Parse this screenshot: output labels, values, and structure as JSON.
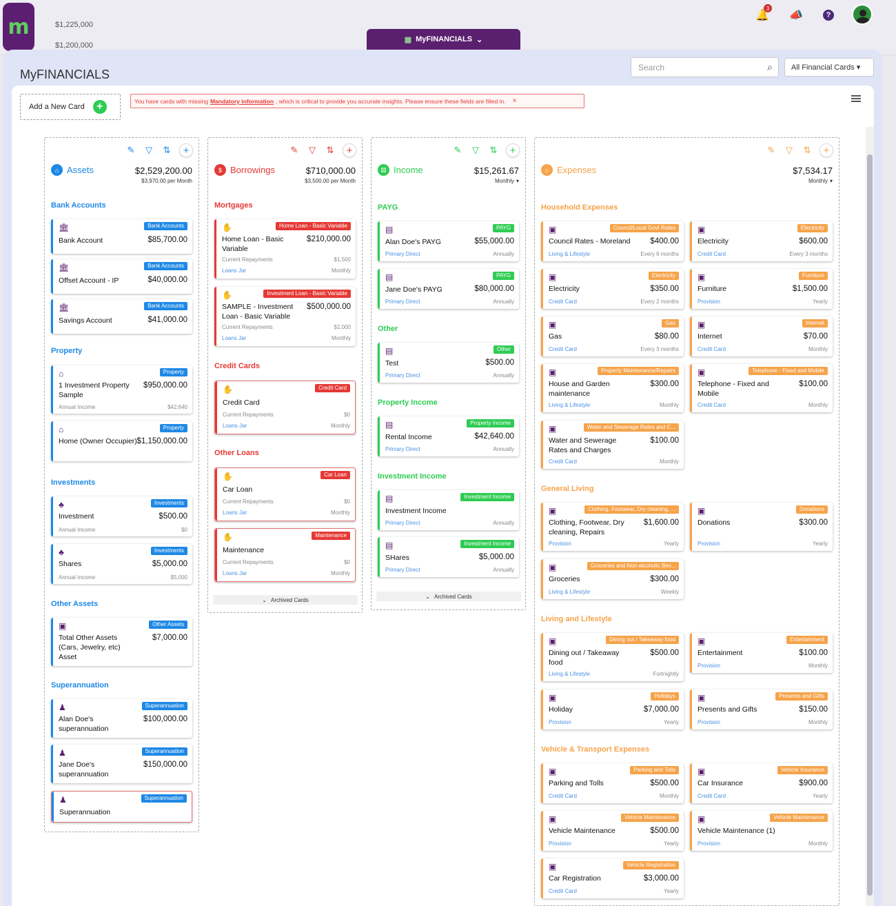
{
  "topbar": {
    "bg_ticks": [
      "$1,225,000",
      "$1,200,000"
    ],
    "nav_tab": "MyFINANCIALS",
    "notif_count": "3",
    "help": "?"
  },
  "header": {
    "title": "MyFINANCIALS",
    "search_placeholder": "Search",
    "filter": "All Financial Cards"
  },
  "toolbar": {
    "add_card": "Add a New Card",
    "alert_pre": "You have cards with missing",
    "alert_link": "Mandatory information",
    "alert_post": ", which is critical to provide you accurate insights. Please ensure these fields are filled in.",
    "alert_close": "×"
  },
  "colors": {
    "assets": "#1e88e5",
    "borrowings": "#e53935",
    "income": "#2ecc52",
    "expenses": "#f6a34a",
    "brand": "#5a1f6e"
  },
  "assets": {
    "title": "Assets",
    "total": "$2,529,200.00",
    "per_month": "$3,970.00",
    "per_label": "per Month",
    "s1": "Bank Accounts",
    "s2": "Property",
    "s3": "Investments",
    "s4": "Other Assets",
    "s5": "Superannuation",
    "cards": [
      {
        "tag": "Bank Accounts",
        "name": "Bank Account",
        "amount": "$85,700.00"
      },
      {
        "tag": "Bank Accounts",
        "name": "Offset Account - IP",
        "amount": "$40,000.00"
      },
      {
        "tag": "Bank Accounts",
        "name": "Savings Account",
        "amount": "$41,000.00"
      },
      {
        "tag": "Property",
        "name": "1 Investment Property Sample",
        "amount": "$950,000.00",
        "l1": "Annual Income",
        "r1": "$42,640"
      },
      {
        "tag": "Property",
        "name": "Home (Owner Occupier)",
        "amount": "$1,150,000.00"
      },
      {
        "tag": "Investments",
        "name": "Investment",
        "amount": "$500.00",
        "l1": "Annual Income",
        "r1": "$0"
      },
      {
        "tag": "Investments",
        "name": "Shares",
        "amount": "$5,000.00",
        "l1": "Annual Income",
        "r1": "$5,000"
      },
      {
        "tag": "Other Assets",
        "name": "Total Other Assets (Cars, Jewelry, etc) Asset",
        "amount": "$7,000.00"
      },
      {
        "tag": "Superannuation",
        "name": "Alan Doe's superannuation",
        "amount": "$100,000.00"
      },
      {
        "tag": "Superannuation",
        "name": "Jane Doe's superannuation",
        "amount": "$150,000.00"
      },
      {
        "tag": "Superannuation",
        "name": "Superannuation",
        "amount": ""
      }
    ]
  },
  "borrowings": {
    "title": "Borrowings",
    "total": "$710,000.00",
    "per_month": "$3,500.00",
    "per_label": "per Month",
    "s1": "Mortgages",
    "s2": "Credit Cards",
    "s3": "Other Loans",
    "archived": "Archived Cards",
    "cards": [
      {
        "tag": "Home Loan - Basic Variable",
        "name": "Home Loan - Basic Variable",
        "amount": "$210,000.00",
        "l1": "Current Repayments",
        "r1": "$1,500",
        "l2": "Loans Jar",
        "r2": "Monthly"
      },
      {
        "tag": "Investment Loan - Basic Variable",
        "name": "SAMPLE - Investment Loan - Basic Variable",
        "amount": "$500,000.00",
        "l1": "Current Repayments",
        "r1": "$2,000",
        "l2": "Loans Jar",
        "r2": "Monthly"
      },
      {
        "tag": "Credit Card",
        "name": "Credit Card",
        "amount": "",
        "l1": "Current Repayments",
        "r1": "$0",
        "l2": "Loans Jar",
        "r2": "Monthly"
      },
      {
        "tag": "Car Loan",
        "name": "Car Loan",
        "amount": "",
        "l1": "Current Repayments",
        "r1": "$0",
        "l2": "Loans Jar",
        "r2": "Monthly"
      },
      {
        "tag": "Maintenance",
        "name": "Maintenance",
        "amount": "",
        "l1": "Current Repayments",
        "r1": "$0",
        "l2": "Loans Jar",
        "r2": "Monthly"
      }
    ]
  },
  "income": {
    "title": "Income",
    "total": "$15,261.67",
    "freq": "Monthly",
    "s1": "PAYG",
    "s2": "Other",
    "s3": "Property Income",
    "s4": "Investment Income",
    "archived": "Archived Cards",
    "cards": [
      {
        "tag": "PAYG",
        "name": "Alan Doe's PAYG",
        "amount": "$55,000.00",
        "l2": "Primary Direct",
        "r2": "Annually"
      },
      {
        "tag": "PAYG",
        "name": "Jane Doe's PAYG",
        "amount": "$80,000.00",
        "l2": "Primary Direct",
        "r2": "Annually"
      },
      {
        "tag": "Other",
        "name": "Test",
        "amount": "$500.00",
        "l2": "Primary Direct",
        "r2": "Annually"
      },
      {
        "tag": "Property Income",
        "name": "Rental Income",
        "amount": "$42,640.00",
        "l2": "Primary Direct",
        "r2": "Annually"
      },
      {
        "tag": "Investment Income",
        "name": "Investment Income",
        "amount": "",
        "l2": "Primary Direct",
        "r2": "Annually"
      },
      {
        "tag": "Investment Income",
        "name": "SHares",
        "amount": "$5,000.00",
        "l2": "Primary Direct",
        "r2": "Annually"
      }
    ]
  },
  "expenses": {
    "title": "Expenses",
    "total": "$7,534.17",
    "freq": "Monthly",
    "s1": "Household Expenses",
    "s2": "General Living",
    "s3": "Living and Lifestyle",
    "s4": "Vehicle & Transport Expenses",
    "cards": [
      {
        "tag": "Council/Local Govt Rates",
        "name": "Council Rates - Moreland",
        "amount": "$400.00",
        "l2": "Living & Lifestyle",
        "r2": "Every 6 months"
      },
      {
        "tag": "Electricity",
        "name": "Electricity",
        "amount": "$600.00",
        "l2": "Credit Card",
        "r2": "Every 3 months"
      },
      {
        "tag": "Electricity",
        "name": "Electricity",
        "amount": "$350.00",
        "l2": "Credit Card",
        "r2": "Every 2 months"
      },
      {
        "tag": "Furniture",
        "name": "Furniture",
        "amount": "$1,500.00",
        "l2": "Provision",
        "r2": "Yearly"
      },
      {
        "tag": "Gas",
        "name": "Gas",
        "amount": "$80.00",
        "l2": "Credit Card",
        "r2": "Every 3 months"
      },
      {
        "tag": "Internet",
        "name": "Internet",
        "amount": "$70.00",
        "l2": "Credit Card",
        "r2": "Monthly"
      },
      {
        "tag": "Property Maintenance/Repairs",
        "name": "House and Garden maintenance",
        "amount": "$300.00",
        "l2": "Living & Lifestyle",
        "r2": "Monthly"
      },
      {
        "tag": "Telephone - Fixed and Mobile",
        "name": "Telephone - Fixed and Mobile",
        "amount": "$100.00",
        "l2": "Credit Card",
        "r2": "Monthly"
      },
      {
        "tag": "Water and Sewerage Rates and C...",
        "name": "Water and Sewerage Rates and Charges",
        "amount": "$100.00",
        "l2": "Credit Card",
        "r2": "Monthly"
      },
      {
        "tag": "Clothing, Footwear, Dry cleaning, ...",
        "name": "Clothing, Footwear, Dry cleaning, Repairs",
        "amount": "$1,600.00",
        "l2": "Provision",
        "r2": "Yearly"
      },
      {
        "tag": "Donations",
        "name": "Donations",
        "amount": "$300.00",
        "l2": "Provision",
        "r2": "Yearly"
      },
      {
        "tag": "Groceries and Non-alcoholic Bev...",
        "name": "Groceries",
        "amount": "$300.00",
        "l2": "Living & Lifestyle",
        "r2": "Weekly"
      },
      {
        "tag": "Dining out / Takeaway food",
        "name": "Dining out / Takeaway food",
        "amount": "$500.00",
        "l2": "Living & Lifestyle",
        "r2": "Fortnightly"
      },
      {
        "tag": "Entertainment",
        "name": "Entertainment",
        "amount": "$100.00",
        "l2": "Provision",
        "r2": "Monthly"
      },
      {
        "tag": "Holidays",
        "name": "Holiday",
        "amount": "$7,000.00",
        "l2": "Provision",
        "r2": "Yearly"
      },
      {
        "tag": "Presents and Gifts",
        "name": "Presents and Gifts",
        "amount": "$150.00",
        "l2": "Provision",
        "r2": "Monthly"
      },
      {
        "tag": "Parking and Tolls",
        "name": "Parking and Tolls",
        "amount": "$500.00",
        "l2": "Credit Card",
        "r2": "Monthly"
      },
      {
        "tag": "Vehicle Insurance",
        "name": "Car Insurance",
        "amount": "$900.00",
        "l2": "Credit Card",
        "r2": "Yearly"
      },
      {
        "tag": "Vehicle Maintenance",
        "name": "Vehicle Maintenance",
        "amount": "$500.00",
        "l2": "Provision",
        "r2": "Yearly"
      },
      {
        "tag": "Vehicle Maintenance",
        "name": "Vehicle Maintenance (1)",
        "amount": "",
        "l2": "Provision",
        "r2": "Monthly"
      },
      {
        "tag": "Vehicle Registration",
        "name": "Car Registration",
        "amount": "$3,000.00",
        "l2": "Credit Card",
        "r2": "Yearly"
      }
    ]
  }
}
